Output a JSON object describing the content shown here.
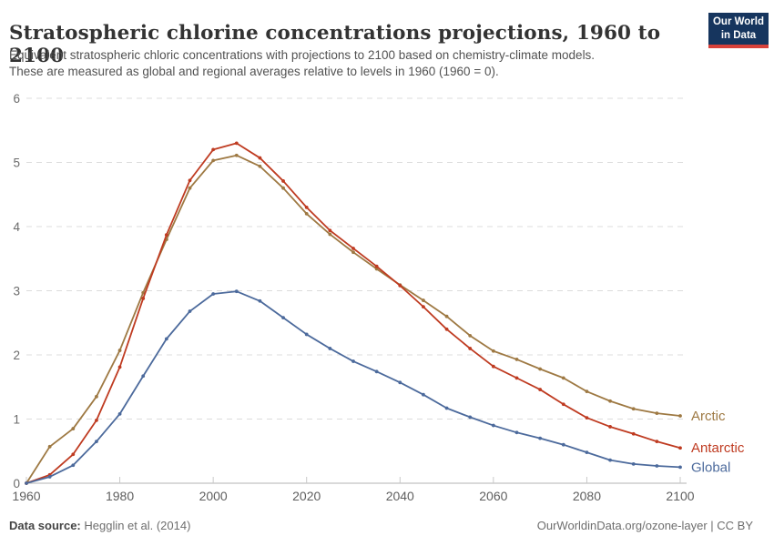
{
  "header": {
    "title": "Stratospheric chlorine concentrations projections, 1960 to 2100",
    "subtitle_line1": "Equivalent stratospheric chloric concentrations with projections to 2100 based on chemistry-climate models.",
    "subtitle_line2": "These are measured as global and regional averages relative to levels in 1960 (1960 = 0)."
  },
  "logo": {
    "line1": "Our World",
    "line2": "in Data",
    "bg_color": "#16355E",
    "accent_color": "#D7413A"
  },
  "chart_data": {
    "type": "line",
    "title": "Stratospheric chlorine concentrations projections, 1960 to 2100",
    "xlabel": "",
    "ylabel": "",
    "xlim": [
      1960,
      2100
    ],
    "ylim": [
      0,
      6
    ],
    "x_ticks": [
      1960,
      1980,
      2000,
      2020,
      2040,
      2060,
      2080,
      2100
    ],
    "y_ticks": [
      0,
      1,
      2,
      3,
      4,
      5,
      6
    ],
    "grid": "horizontal-dashed",
    "legend_position": "right-of-line-ends",
    "x": [
      1960,
      1965,
      1970,
      1975,
      1980,
      1985,
      1990,
      1995,
      2000,
      2005,
      2010,
      2015,
      2020,
      2025,
      2030,
      2035,
      2040,
      2045,
      2050,
      2055,
      2060,
      2065,
      2070,
      2075,
      2080,
      2085,
      2090,
      2095,
      2100
    ],
    "series": [
      {
        "name": "Arctic",
        "color": "#9E7943",
        "values": [
          0,
          0.57,
          0.85,
          1.35,
          2.07,
          2.97,
          3.8,
          4.6,
          5.03,
          5.11,
          4.94,
          4.6,
          4.2,
          3.88,
          3.6,
          3.34,
          3.09,
          2.85,
          2.6,
          2.3,
          2.06,
          1.93,
          1.78,
          1.64,
          1.43,
          1.28,
          1.16,
          1.09,
          1.05
        ]
      },
      {
        "name": "Antarctic",
        "color": "#BF3B21",
        "values": [
          0,
          0.13,
          0.45,
          0.98,
          1.81,
          2.88,
          3.87,
          4.72,
          5.2,
          5.3,
          5.07,
          4.71,
          4.3,
          3.94,
          3.66,
          3.38,
          3.08,
          2.75,
          2.4,
          2.1,
          1.82,
          1.64,
          1.46,
          1.23,
          1.02,
          0.88,
          0.77,
          0.65,
          0.55
        ]
      },
      {
        "name": "Global",
        "color": "#4C6A9C",
        "values": [
          0,
          0.1,
          0.28,
          0.65,
          1.08,
          1.67,
          2.25,
          2.68,
          2.95,
          2.99,
          2.84,
          2.58,
          2.32,
          2.1,
          1.9,
          1.74,
          1.57,
          1.38,
          1.17,
          1.03,
          0.9,
          0.79,
          0.7,
          0.6,
          0.48,
          0.36,
          0.3,
          0.27,
          0.25
        ]
      }
    ],
    "grid_color": "#DCDCDC",
    "axis_color": "#B3B3B3",
    "tick_color": "#C9C9C9",
    "tick_label_color": "#5F5F5F",
    "y_label_color": "#6B6B6B"
  },
  "footer": {
    "source_label": "Data source:",
    "source_value": " Hegglin et al. (2014)",
    "attribution": "OurWorldinData.org/ozone-layer | CC BY"
  }
}
